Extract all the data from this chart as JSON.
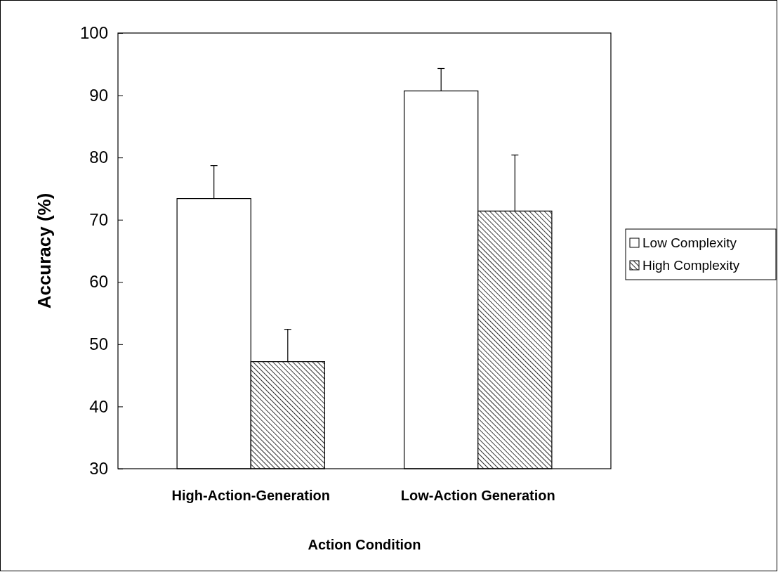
{
  "chart_data": {
    "type": "bar",
    "xlabel": "Action Condition",
    "ylabel": "Accuracy (%)",
    "categories": [
      "High-Action-Generation",
      "Low-Action Generation"
    ],
    "series": [
      {
        "name": "Low Complexity",
        "color": "#ffffff",
        "values": [
          73.4,
          90.7
        ],
        "errors": [
          5.3,
          3.6
        ]
      },
      {
        "name": "High Complexity",
        "color": "#000000",
        "values": [
          47.2,
          71.4
        ],
        "errors": [
          5.2,
          9.0
        ]
      }
    ],
    "ylim": [
      30,
      100
    ],
    "yticks": [
      30,
      40,
      50,
      60,
      70,
      80,
      90,
      100
    ],
    "grid": false,
    "legend": "right"
  }
}
